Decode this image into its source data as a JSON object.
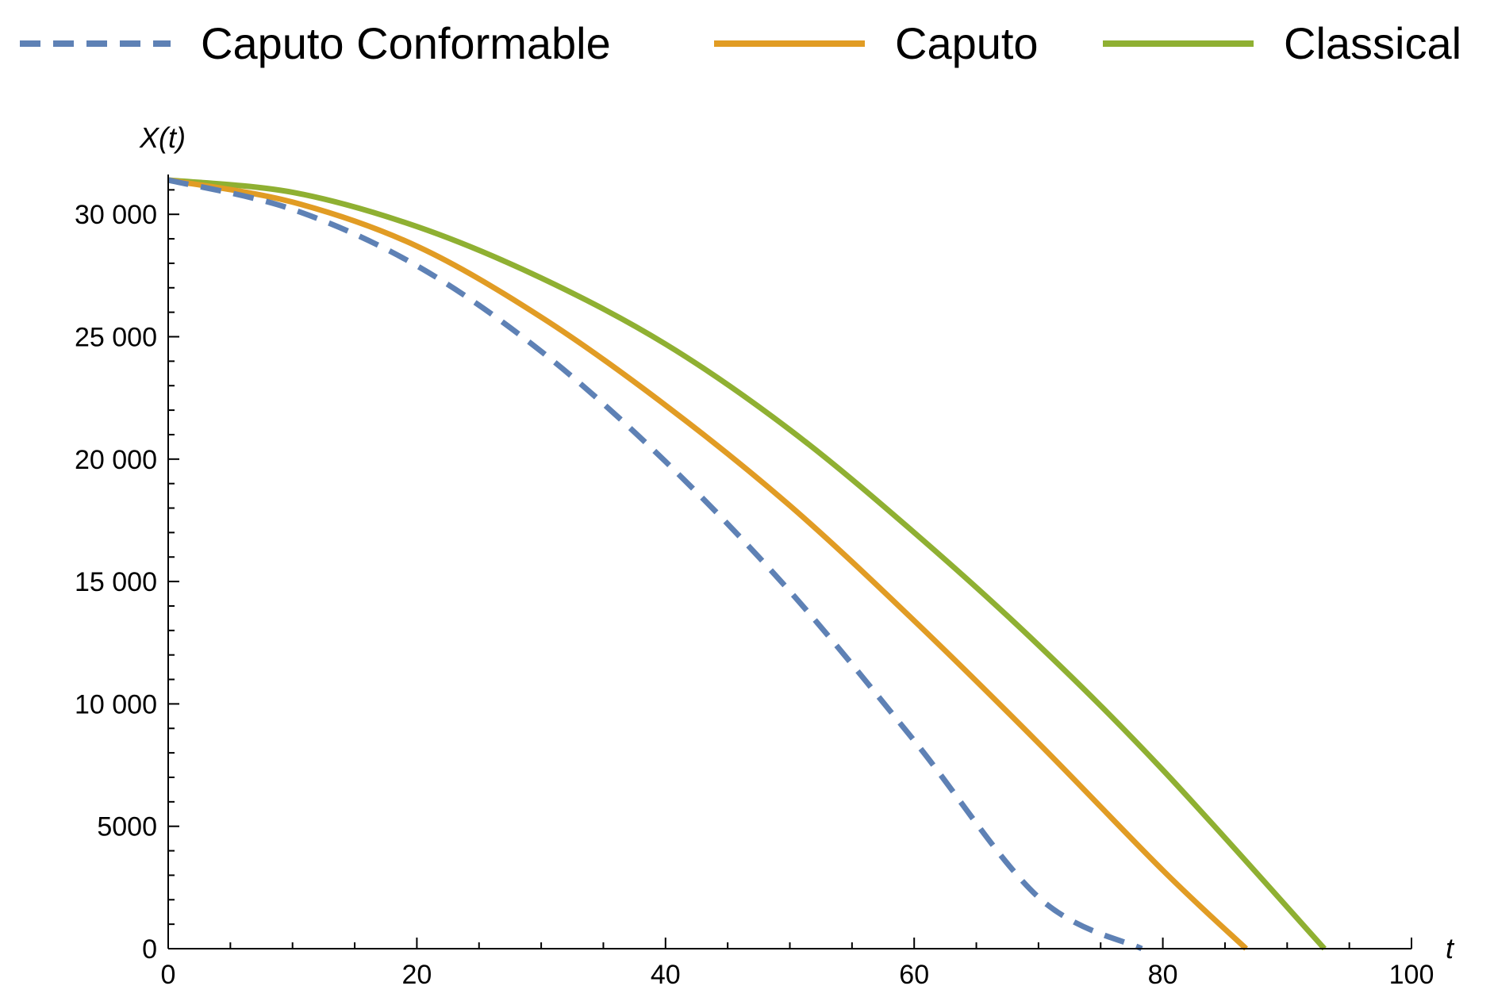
{
  "chart_data": {
    "type": "line",
    "xlabel": "t",
    "ylabel": "X(t)",
    "xlim": [
      0,
      100
    ],
    "ylim": [
      0,
      31500
    ],
    "grid": false,
    "legend_placement": "top",
    "x_ticks": [
      0,
      20,
      40,
      60,
      80,
      100
    ],
    "x_tick_labels": [
      "0",
      "20",
      "40",
      "60",
      "80",
      "100"
    ],
    "y_ticks": [
      0,
      5000,
      10000,
      15000,
      20000,
      25000,
      30000
    ],
    "y_tick_labels": [
      "0",
      "5000",
      "10 000",
      "15 000",
      "20 000",
      "25 000",
      "30 000"
    ],
    "series": [
      {
        "name": "Caputo Conformable",
        "color": "#5E81B5",
        "style": "dashed",
        "x": [
          0,
          10,
          20,
          30,
          40,
          50,
          60,
          70,
          78.3
        ],
        "y": [
          31400,
          30200,
          27900,
          24400,
          19900,
          14600,
          8500,
          2100,
          0
        ]
      },
      {
        "name": "Caputo",
        "color": "#E19C24",
        "style": "solid",
        "x": [
          0,
          10,
          20,
          30,
          40,
          50,
          60,
          70,
          80,
          86.7
        ],
        "y": [
          31400,
          30500,
          28700,
          25800,
          22200,
          18100,
          13400,
          8400,
          3200,
          0
        ]
      },
      {
        "name": "Classical",
        "color": "#8FB032",
        "style": "solid",
        "x": [
          0,
          10,
          20,
          30,
          40,
          50,
          60,
          70,
          80,
          93
        ],
        "y": [
          31400,
          30900,
          29500,
          27400,
          24700,
          21200,
          17000,
          12400,
          7300,
          0
        ]
      }
    ]
  }
}
